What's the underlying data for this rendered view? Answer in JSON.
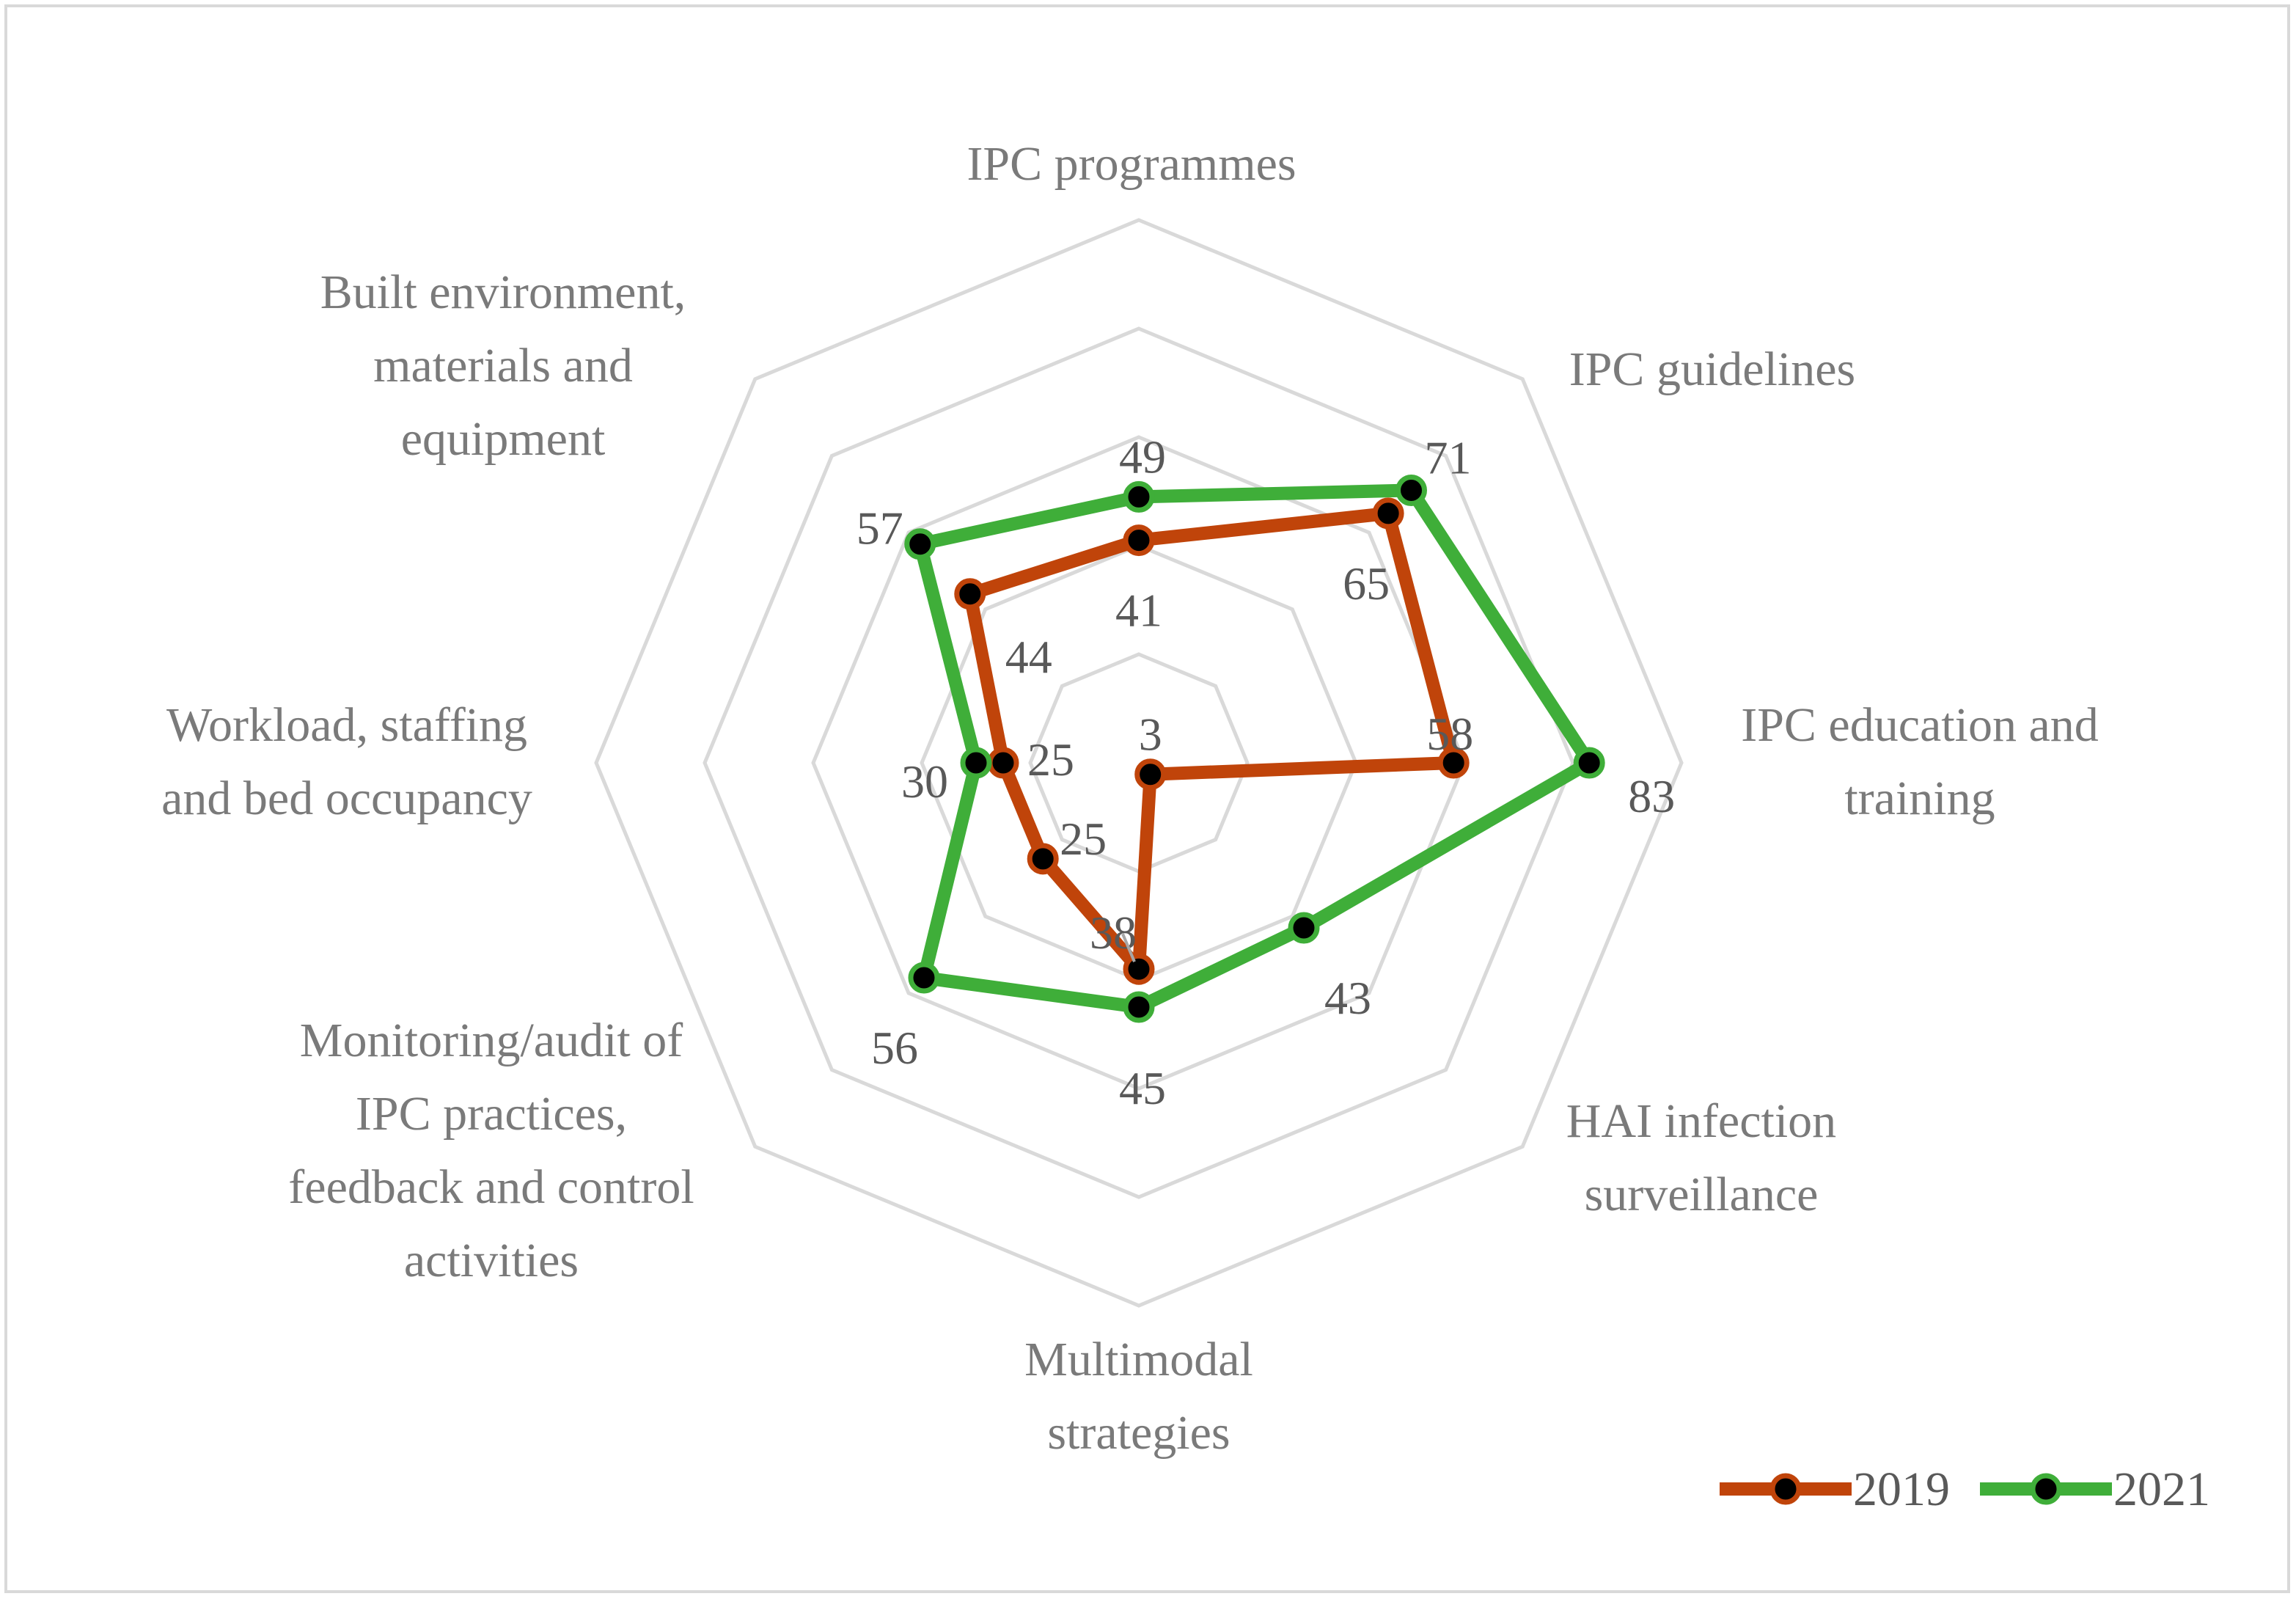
{
  "chart_data": {
    "type": "radar",
    "title": "",
    "categories": [
      "IPC programmes",
      "IPC guidelines",
      "IPC education and training",
      "HAI infection surveillance",
      "Multimodal strategies",
      "Monitoring/audit of IPC practices, feedback and control activities",
      "Workload, staffing and bed occupancy",
      "Built environment, materials and equipment"
    ],
    "category_label_lines": [
      [
        "IPC programmes"
      ],
      [
        "IPC guidelines"
      ],
      [
        "IPC education and",
        "training"
      ],
      [
        "HAI infection",
        "surveillance"
      ],
      [
        "Multimodal",
        "strategies"
      ],
      [
        "Monitoring/audit of",
        "IPC practices,",
        "feedback and control",
        "activities"
      ],
      [
        "Workload, staffing",
        "and bed occupancy"
      ],
      [
        "Built environment,",
        "materials and",
        "equipment"
      ]
    ],
    "series": [
      {
        "name": "2019",
        "color": "#c0440a",
        "values": [
          41,
          65,
          58,
          3,
          38,
          25,
          25,
          44
        ]
      },
      {
        "name": "2021",
        "color": "#3fae39",
        "values": [
          49,
          71,
          83,
          43,
          45,
          56,
          30,
          57
        ]
      }
    ],
    "radial_range": [
      0,
      100
    ],
    "grid_rings": 5,
    "grid": true,
    "legend_position": "bottom-right",
    "marker_color": "#000000",
    "grid_color": "#d9d9d9",
    "label_color": "#7a7a7a"
  }
}
